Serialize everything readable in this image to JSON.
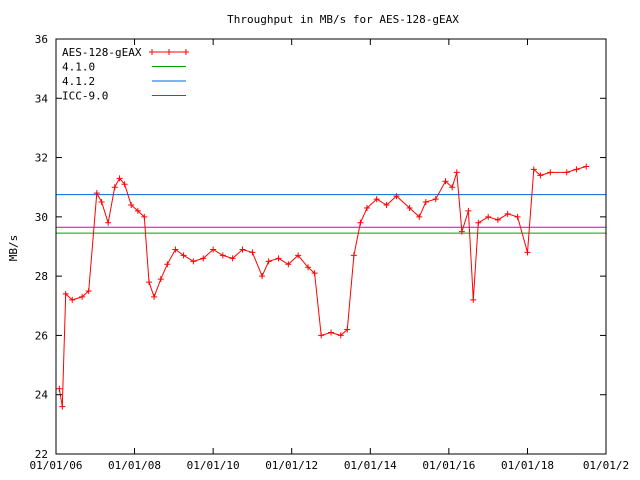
{
  "chart_data": {
    "type": "line",
    "title": "Throughput in MB/s for AES-128-gEAX",
    "ylabel": "MB/s",
    "xlabel": "",
    "ylim": [
      22,
      36
    ],
    "xlim": [
      "2006-01-01",
      "2020-01-01"
    ],
    "y_ticks": [
      22,
      24,
      26,
      28,
      30,
      32,
      34,
      36
    ],
    "x_ticks": [
      {
        "date": "2006-01-01",
        "label": "01/01/06"
      },
      {
        "date": "2008-01-01",
        "label": "01/01/08"
      },
      {
        "date": "2010-01-01",
        "label": "01/01/10"
      },
      {
        "date": "2012-01-01",
        "label": "01/01/12"
      },
      {
        "date": "2014-01-01",
        "label": "01/01/14"
      },
      {
        "date": "2016-01-01",
        "label": "01/01/16"
      },
      {
        "date": "2018-01-01",
        "label": "01/01/18"
      },
      {
        "date": "2020-01-01",
        "label": "01/01/2"
      }
    ],
    "grid": false,
    "legend_position": "top-left",
    "series": [
      {
        "name": "AES-128-gEAX",
        "color": "#ff0000",
        "marker": "plus",
        "points": [
          [
            "2006-02-01",
            24.2
          ],
          [
            "2006-03-01",
            23.6
          ],
          [
            "2006-04-01",
            27.4
          ],
          [
            "2006-06-01",
            27.2
          ],
          [
            "2006-09-01",
            27.3
          ],
          [
            "2006-11-01",
            27.5
          ],
          [
            "2007-01-15",
            30.8
          ],
          [
            "2007-03-01",
            30.5
          ],
          [
            "2007-05-01",
            29.8
          ],
          [
            "2007-07-01",
            31.0
          ],
          [
            "2007-08-15",
            31.3
          ],
          [
            "2007-10-01",
            31.1
          ],
          [
            "2007-12-01",
            30.4
          ],
          [
            "2008-02-01",
            30.2
          ],
          [
            "2008-04-01",
            30.0
          ],
          [
            "2008-05-15",
            27.8
          ],
          [
            "2008-07-01",
            27.3
          ],
          [
            "2008-09-01",
            27.9
          ],
          [
            "2008-11-01",
            28.4
          ],
          [
            "2009-01-15",
            28.9
          ],
          [
            "2009-04-01",
            28.7
          ],
          [
            "2009-07-01",
            28.5
          ],
          [
            "2009-10-01",
            28.6
          ],
          [
            "2010-01-01",
            28.9
          ],
          [
            "2010-04-01",
            28.7
          ],
          [
            "2010-07-01",
            28.6
          ],
          [
            "2010-10-01",
            28.9
          ],
          [
            "2011-01-01",
            28.8
          ],
          [
            "2011-04-01",
            28.0
          ],
          [
            "2011-06-01",
            28.5
          ],
          [
            "2011-09-01",
            28.6
          ],
          [
            "2011-12-01",
            28.4
          ],
          [
            "2012-03-01",
            28.7
          ],
          [
            "2012-06-01",
            28.3
          ],
          [
            "2012-08-01",
            28.1
          ],
          [
            "2012-10-01",
            26.0
          ],
          [
            "2013-01-01",
            26.1
          ],
          [
            "2013-04-01",
            26.0
          ],
          [
            "2013-06-01",
            26.2
          ],
          [
            "2013-08-01",
            28.7
          ],
          [
            "2013-10-01",
            29.8
          ],
          [
            "2013-12-01",
            30.3
          ],
          [
            "2014-03-01",
            30.6
          ],
          [
            "2014-06-01",
            30.4
          ],
          [
            "2014-09-01",
            30.7
          ],
          [
            "2015-01-01",
            30.3
          ],
          [
            "2015-04-01",
            30.0
          ],
          [
            "2015-06-01",
            30.5
          ],
          [
            "2015-09-01",
            30.6
          ],
          [
            "2015-12-01",
            31.2
          ],
          [
            "2016-02-01",
            31.0
          ],
          [
            "2016-03-15",
            31.5
          ],
          [
            "2016-05-01",
            29.5
          ],
          [
            "2016-07-01",
            30.2
          ],
          [
            "2016-08-15",
            27.2
          ],
          [
            "2016-10-01",
            29.8
          ],
          [
            "2017-01-01",
            30.0
          ],
          [
            "2017-04-01",
            29.9
          ],
          [
            "2017-07-01",
            30.1
          ],
          [
            "2017-10-01",
            30.0
          ],
          [
            "2018-01-01",
            28.8
          ],
          [
            "2018-03-01",
            31.6
          ],
          [
            "2018-05-01",
            31.4
          ],
          [
            "2018-08-01",
            31.5
          ],
          [
            "2019-01-01",
            31.5
          ],
          [
            "2019-04-01",
            31.6
          ],
          [
            "2019-07-01",
            31.7
          ]
        ]
      },
      {
        "name": "4.1.0",
        "color": "#00a000",
        "constant": 29.45
      },
      {
        "name": "4.1.2",
        "color": "#0066dd",
        "constant": 30.75
      },
      {
        "name": "ICC-9.0",
        "color": "#cc00cc",
        "constant": 29.65
      }
    ]
  }
}
